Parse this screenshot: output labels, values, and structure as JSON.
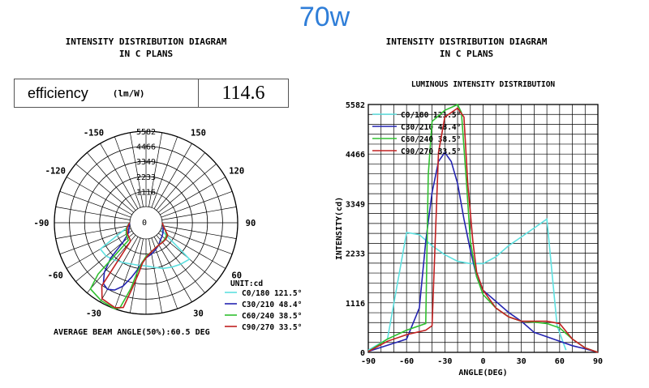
{
  "header": {
    "title": "70w"
  },
  "left": {
    "heading_line1": "INTENSITY DISTRIBUTION DIAGRAM",
    "heading_line2": "IN C PLANS",
    "efficiency_label": "efficiency",
    "efficiency_unit": "(lm/W)",
    "efficiency_value": "114.6",
    "unit_label": "UNIT:cd",
    "beam_angle_text": "AVERAGE BEAM ANGLE(50%):60.5 DEG"
  },
  "right": {
    "heading_line1": "INTENSITY DISTRIBUTION DIAGRAM",
    "heading_line2": "IN C PLANS",
    "chart_title": "LUMINOUS INTENSITY DISTRIBUTION"
  },
  "colors": {
    "c0": "#5ee0e0",
    "c30": "#2424b0",
    "c60": "#30c030",
    "c90": "#c02020",
    "title": "#2f7ed8"
  },
  "chart_data": [
    {
      "type": "polar",
      "radial_ticks": [
        "1116",
        "2233",
        "3349",
        "4466",
        "5582"
      ],
      "rmax": 5582,
      "angle_labels": [
        {
          "deg": -150,
          "label": "-150"
        },
        {
          "deg": 150,
          "label": "150"
        },
        {
          "deg": -120,
          "label": "-120"
        },
        {
          "deg": 120,
          "label": "120"
        },
        {
          "deg": -90,
          "label": "-90"
        },
        {
          "deg": 90,
          "label": "90"
        },
        {
          "deg": -60,
          "label": "-60"
        },
        {
          "deg": 60,
          "label": "60"
        },
        {
          "deg": -30,
          "label": "-30"
        },
        {
          "deg": 0,
          "label": "0"
        },
        {
          "deg": 30,
          "label": "30"
        }
      ],
      "series": [
        {
          "name": "C0/180",
          "angle": "121.5°",
          "color": "#5ee0e0",
          "points": [
            [
              -90,
              50
            ],
            [
              -75,
              300
            ],
            [
              -60,
              2700
            ],
            [
              -50,
              2650
            ],
            [
              -40,
              2400
            ],
            [
              -30,
              2200
            ],
            [
              -20,
              2050
            ],
            [
              -10,
              2000
            ],
            [
              0,
              2000
            ],
            [
              10,
              2150
            ],
            [
              20,
              2400
            ],
            [
              30,
              2600
            ],
            [
              40,
              2800
            ],
            [
              50,
              3000
            ],
            [
              58,
              600
            ],
            [
              65,
              50
            ]
          ]
        },
        {
          "name": "C30/210",
          "angle": "48.4°",
          "color": "#2424b0",
          "points": [
            [
              -90,
              20
            ],
            [
              -60,
              300
            ],
            [
              -50,
              1000
            ],
            [
              -45,
              2500
            ],
            [
              -40,
              3600
            ],
            [
              -35,
              4300
            ],
            [
              -30,
              4500
            ],
            [
              -25,
              4300
            ],
            [
              -20,
              3800
            ],
            [
              -15,
              3000
            ],
            [
              -10,
              2300
            ],
            [
              -5,
              1700
            ],
            [
              0,
              1400
            ],
            [
              10,
              1150
            ],
            [
              20,
              900
            ],
            [
              30,
              700
            ],
            [
              40,
              450
            ],
            [
              50,
              350
            ],
            [
              60,
              250
            ],
            [
              70,
              150
            ],
            [
              80,
              80
            ],
            [
              90,
              0
            ]
          ]
        },
        {
          "name": "C60/240",
          "angle": "38.5°",
          "color": "#30c030",
          "points": [
            [
              -90,
              20
            ],
            [
              -75,
              300
            ],
            [
              -60,
              500
            ],
            [
              -45,
              650
            ],
            [
              -43,
              4000
            ],
            [
              -40,
              5200
            ],
            [
              -30,
              5450
            ],
            [
              -20,
              5580
            ],
            [
              -17,
              5400
            ],
            [
              -13,
              3800
            ],
            [
              -10,
              2500
            ],
            [
              -5,
              1700
            ],
            [
              0,
              1300
            ],
            [
              10,
              1000
            ],
            [
              20,
              800
            ],
            [
              30,
              700
            ],
            [
              40,
              680
            ],
            [
              50,
              650
            ],
            [
              60,
              550
            ],
            [
              70,
              300
            ],
            [
              80,
              100
            ],
            [
              90,
              0
            ]
          ]
        },
        {
          "name": "C90/270",
          "angle": "33.5°",
          "color": "#c02020",
          "points": [
            [
              -90,
              20
            ],
            [
              -75,
              250
            ],
            [
              -60,
              400
            ],
            [
              -45,
              500
            ],
            [
              -40,
              600
            ],
            [
              -35,
              4500
            ],
            [
              -30,
              5300
            ],
            [
              -20,
              5500
            ],
            [
              -15,
              5300
            ],
            [
              -12,
              3800
            ],
            [
              -8,
              2500
            ],
            [
              -5,
              1800
            ],
            [
              0,
              1400
            ],
            [
              10,
              1000
            ],
            [
              20,
              800
            ],
            [
              30,
              700
            ],
            [
              40,
              700
            ],
            [
              50,
              700
            ],
            [
              60,
              650
            ],
            [
              70,
              300
            ],
            [
              80,
              100
            ],
            [
              90,
              0
            ]
          ]
        }
      ]
    },
    {
      "type": "line",
      "title": "LUMINOUS INTENSITY DISTRIBUTION",
      "xlabel": "ANGLE(DEG)",
      "ylabel": "INTENSITY(cd)",
      "xlim": [
        -90,
        90
      ],
      "ylim": [
        0,
        5582
      ],
      "xticks": [
        "-90",
        "-60",
        "-30",
        "0",
        "30",
        "60",
        "90"
      ],
      "yticks": [
        "0",
        "1116",
        "2233",
        "3349",
        "4466",
        "5582"
      ],
      "grid": true,
      "legend_position": "top-left",
      "series": "same as polar chart series"
    }
  ]
}
